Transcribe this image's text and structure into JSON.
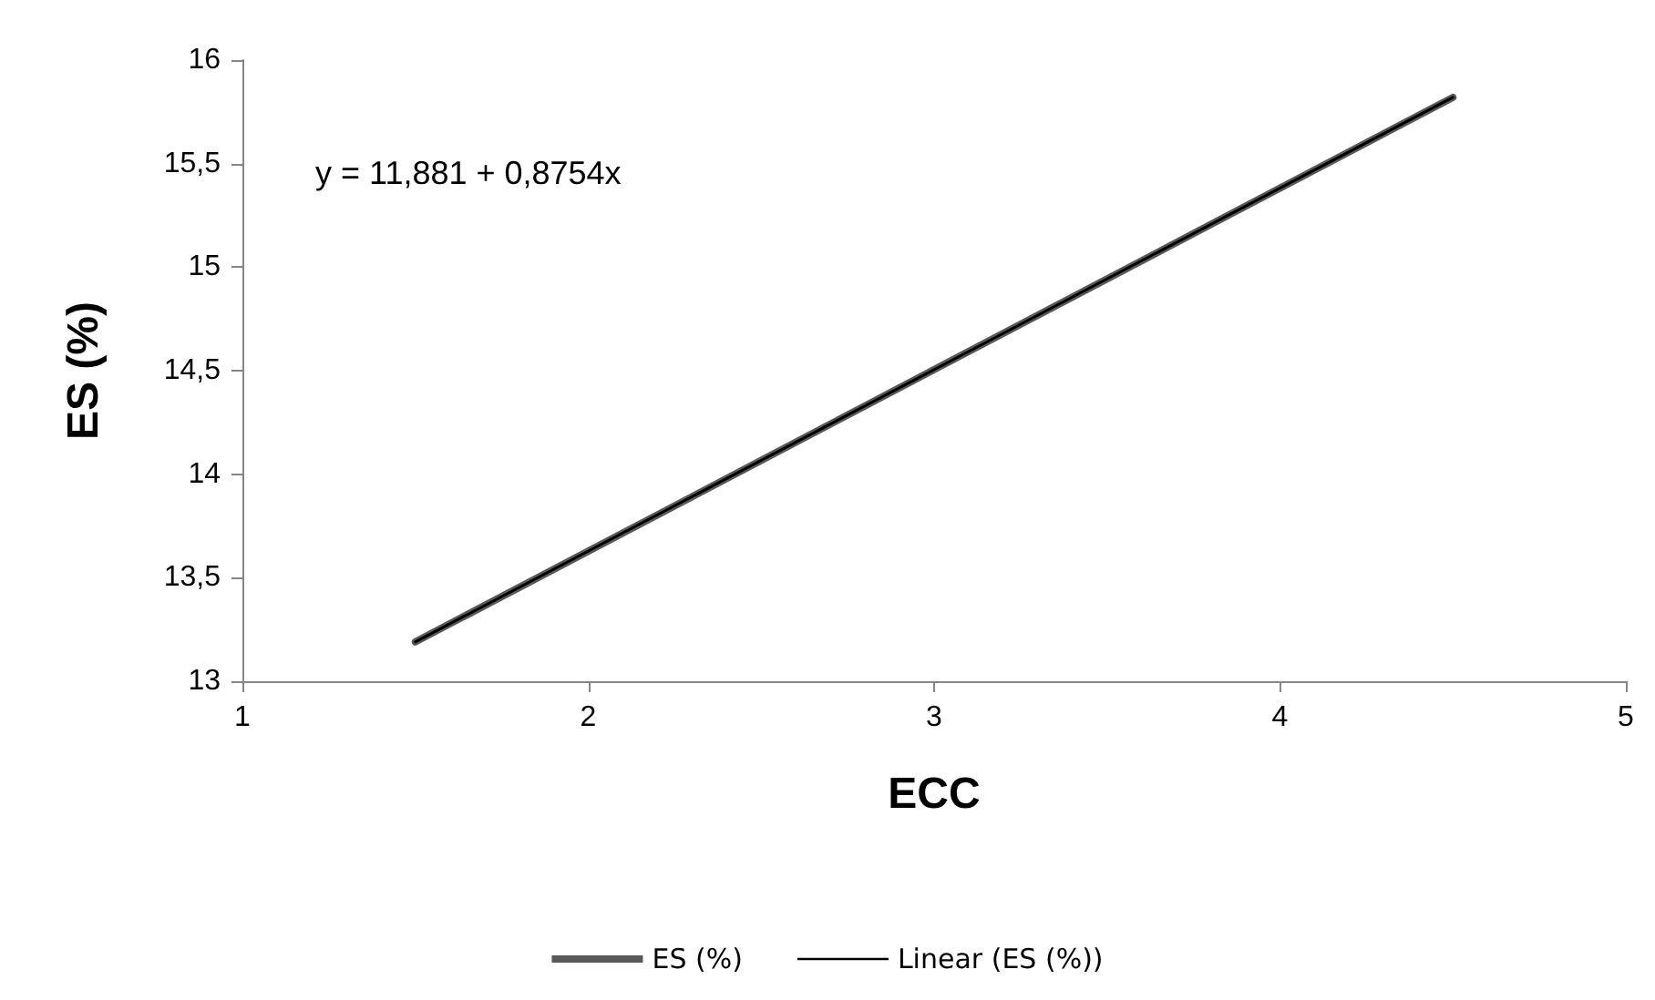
{
  "chart_data": {
    "type": "line",
    "xlabel": "ECC",
    "ylabel": "ES (%)",
    "annotations": [
      "y = 11,881 + 0,8754x"
    ],
    "x": [
      1.5,
      4.5
    ],
    "series": [
      {
        "name": "ES (%)",
        "color": "#595959",
        "values": [
          13.19,
          15.82
        ]
      },
      {
        "name": "Linear (ES (%))",
        "color": "#000000",
        "x": [
          1.5,
          4.5
        ],
        "values": [
          13.19,
          15.82
        ]
      }
    ],
    "xlim": [
      1,
      5
    ],
    "xticks": [
      1,
      2,
      3,
      4,
      5
    ],
    "ylim": [
      13,
      16
    ],
    "yticks": [
      13,
      {
        "value": 13.5,
        "label": "13,5"
      },
      14,
      {
        "value": 14.5,
        "label": "14,5"
      },
      15,
      {
        "value": 15.5,
        "label": "15,5"
      },
      16
    ],
    "grid": false,
    "legend": "bottom",
    "marker": "none",
    "line_style": "solid"
  }
}
